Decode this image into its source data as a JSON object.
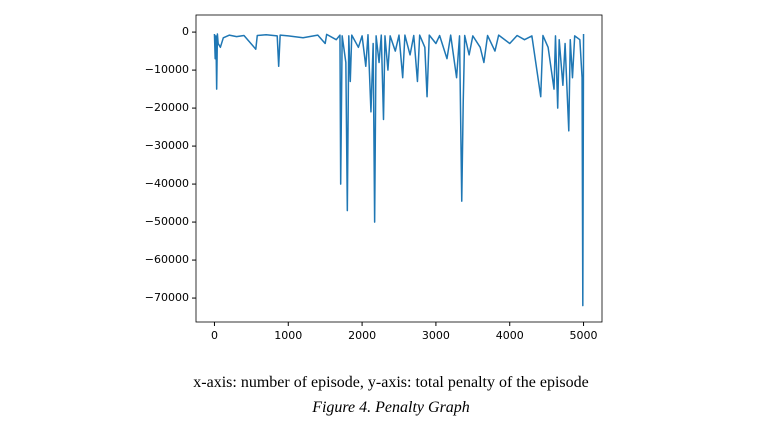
{
  "chart_data": {
    "type": "line",
    "caption": "x-axis: number of episode, y-axis: total penalty of the episode",
    "figure_label": "Figure 4. Penalty Graph",
    "xlim": [
      -250,
      5250
    ],
    "ylim": [
      -76300,
      4500
    ],
    "xticks": [
      0,
      1000,
      2000,
      3000,
      4000,
      5000
    ],
    "yticks": [
      0,
      {
        "value": -10000,
        "label": "−10000"
      },
      {
        "value": -20000,
        "label": "−20000"
      },
      {
        "value": -30000,
        "label": "−30000"
      },
      {
        "value": -40000,
        "label": "−40000"
      },
      {
        "value": -50000,
        "label": "−50000"
      },
      {
        "value": -60000,
        "label": "−60000"
      },
      {
        "value": -70000,
        "label": "−70000"
      }
    ],
    "series": [
      {
        "color": "#1f77b4",
        "x": [
          0,
          10,
          20,
          30,
          40,
          50,
          80,
          120,
          200,
          300,
          400,
          560,
          580,
          700,
          850,
          870,
          890,
          1000,
          1200,
          1400,
          1500,
          1520,
          1650,
          1700,
          1710,
          1730,
          1780,
          1800,
          1820,
          1840,
          1860,
          1950,
          2000,
          2050,
          2080,
          2120,
          2150,
          2170,
          2190,
          2230,
          2260,
          2290,
          2310,
          2350,
          2380,
          2450,
          2500,
          2550,
          2580,
          2650,
          2700,
          2750,
          2780,
          2850,
          2880,
          2910,
          3000,
          3050,
          3150,
          3200,
          3280,
          3320,
          3350,
          3370,
          3390,
          3450,
          3500,
          3600,
          3650,
          3700,
          3800,
          3850,
          4000,
          4100,
          4200,
          4300,
          4420,
          4450,
          4520,
          4600,
          4620,
          4650,
          4670,
          4720,
          4750,
          4780,
          4800,
          4820,
          4850,
          4880,
          4950,
          4980,
          4990,
          5000
        ],
        "values": [
          -500,
          -7000,
          -1000,
          -15000,
          -500,
          -3000,
          -4000,
          -1500,
          -800,
          -1200,
          -900,
          -4500,
          -900,
          -700,
          -1000,
          -9000,
          -800,
          -1000,
          -1500,
          -800,
          -3000,
          -600,
          -2000,
          -800,
          -40000,
          -1000,
          -8000,
          -47000,
          -1000,
          -13000,
          -800,
          -4000,
          -1000,
          -9000,
          -700,
          -21000,
          -3000,
          -50000,
          -1000,
          -8000,
          -800,
          -23000,
          -1000,
          -10000,
          -1000,
          -5000,
          -800,
          -12000,
          -800,
          -6000,
          -900,
          -13000,
          -800,
          -4000,
          -17000,
          -800,
          -3000,
          -900,
          -7000,
          -800,
          -12000,
          -1000,
          -44500,
          -18500,
          -900,
          -6000,
          -1000,
          -4000,
          -8000,
          -900,
          -5000,
          -800,
          -3000,
          -900,
          -2000,
          -1000,
          -17000,
          -900,
          -4000,
          -15000,
          -1000,
          -20000,
          -2000,
          -14000,
          -3000,
          -17000,
          -26000,
          -2000,
          -12000,
          -1000,
          -2000,
          -12000,
          -72000,
          -500
        ]
      }
    ]
  }
}
